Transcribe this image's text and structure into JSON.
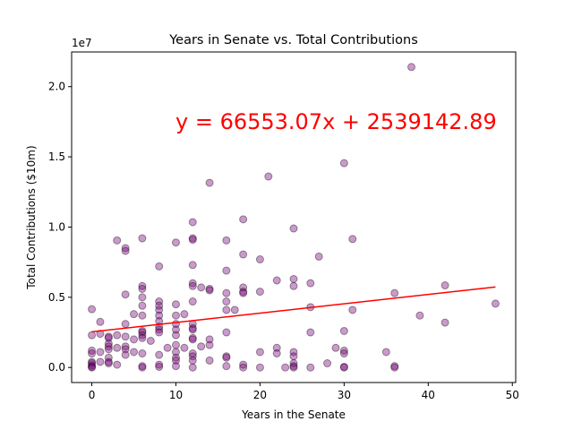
{
  "chart_data": {
    "type": "scatter",
    "title": "Years in Senate vs. Total Contributions",
    "xlabel": "Years in the Senate",
    "ylabel": "Total Contributions ($10m)",
    "offset_text": "1e7",
    "annotation": "y = 66553.07x + 2539142.89",
    "xlim": [
      -2.4,
      50.4
    ],
    "ylim": [
      -1070000,
      22470000
    ],
    "x_ticks": [
      0,
      10,
      20,
      30,
      40,
      50
    ],
    "x_tick_labels": [
      "0",
      "10",
      "20",
      "30",
      "40",
      "50"
    ],
    "y_ticks": [
      0,
      5000000,
      10000000,
      15000000,
      20000000
    ],
    "y_tick_labels": [
      "0.0",
      "0.5",
      "1.0",
      "1.5",
      "2.0"
    ],
    "grid": false,
    "point_color": "#800080",
    "point_edge_color": "#000000",
    "point_alpha": 0.4,
    "line_color": "#ff0000",
    "annotation_color": "#ff0000",
    "regression": {
      "slope": 66553.07,
      "intercept": 2539142.89,
      "x_range": [
        0,
        48
      ]
    },
    "points": [
      [
        0,
        4150000
      ],
      [
        0,
        2300000
      ],
      [
        0,
        1200000
      ],
      [
        0,
        1000000
      ],
      [
        0,
        400000
      ],
      [
        0,
        300000
      ],
      [
        0,
        150000
      ],
      [
        0,
        50000
      ],
      [
        0,
        0
      ],
      [
        1,
        3250000
      ],
      [
        1,
        2400000
      ],
      [
        1,
        1100000
      ],
      [
        1,
        400000
      ],
      [
        2,
        2200000
      ],
      [
        2,
        2100000
      ],
      [
        2,
        1700000
      ],
      [
        2,
        1500000
      ],
      [
        2,
        1300000
      ],
      [
        2,
        700000
      ],
      [
        2,
        400000
      ],
      [
        2,
        300000
      ],
      [
        3,
        9050000
      ],
      [
        3,
        2300000
      ],
      [
        3,
        1400000
      ],
      [
        3,
        200000
      ],
      [
        4,
        8500000
      ],
      [
        4,
        8300000
      ],
      [
        4,
        5200000
      ],
      [
        4,
        3100000
      ],
      [
        4,
        2200000
      ],
      [
        4,
        1500000
      ],
      [
        4,
        1300000
      ],
      [
        4,
        900000
      ],
      [
        5,
        3800000
      ],
      [
        5,
        2000000
      ],
      [
        5,
        1100000
      ],
      [
        6,
        9200000
      ],
      [
        6,
        5800000
      ],
      [
        6,
        5600000
      ],
      [
        6,
        5000000
      ],
      [
        6,
        4400000
      ],
      [
        6,
        3700000
      ],
      [
        6,
        2600000
      ],
      [
        6,
        2500000
      ],
      [
        6,
        2300000
      ],
      [
        6,
        2100000
      ],
      [
        6,
        1000000
      ],
      [
        6,
        100000
      ],
      [
        6,
        0
      ],
      [
        7,
        1900000
      ],
      [
        8,
        7200000
      ],
      [
        8,
        4700000
      ],
      [
        8,
        4400000
      ],
      [
        8,
        4100000
      ],
      [
        8,
        3700000
      ],
      [
        8,
        3300000
      ],
      [
        8,
        2900000
      ],
      [
        8,
        2700000
      ],
      [
        8,
        2500000
      ],
      [
        8,
        900000
      ],
      [
        8,
        200000
      ],
      [
        8,
        50000
      ],
      [
        9,
        1400000
      ],
      [
        10,
        8900000
      ],
      [
        10,
        4500000
      ],
      [
        10,
        3700000
      ],
      [
        10,
        3100000
      ],
      [
        10,
        2700000
      ],
      [
        10,
        2300000
      ],
      [
        10,
        1600000
      ],
      [
        10,
        1100000
      ],
      [
        10,
        700000
      ],
      [
        10,
        500000
      ],
      [
        10,
        100000
      ],
      [
        11,
        3800000
      ],
      [
        11,
        1400000
      ],
      [
        12,
        10350000
      ],
      [
        12,
        9200000
      ],
      [
        12,
        9100000
      ],
      [
        12,
        7300000
      ],
      [
        12,
        6000000
      ],
      [
        12,
        5800000
      ],
      [
        12,
        4700000
      ],
      [
        12,
        3100000
      ],
      [
        12,
        2800000
      ],
      [
        12,
        2700000
      ],
      [
        12,
        2100000
      ],
      [
        12,
        2000000
      ],
      [
        12,
        1000000
      ],
      [
        12,
        800000
      ],
      [
        12,
        500000
      ],
      [
        12,
        0
      ],
      [
        13,
        5700000
      ],
      [
        13,
        1500000
      ],
      [
        14,
        13150000
      ],
      [
        14,
        5600000
      ],
      [
        14,
        5500000
      ],
      [
        14,
        2000000
      ],
      [
        14,
        1600000
      ],
      [
        14,
        500000
      ],
      [
        16,
        9050000
      ],
      [
        16,
        6900000
      ],
      [
        16,
        5300000
      ],
      [
        16,
        4700000
      ],
      [
        16,
        4100000
      ],
      [
        16,
        2500000
      ],
      [
        16,
        800000
      ],
      [
        16,
        700000
      ],
      [
        16,
        100000
      ],
      [
        17,
        4100000
      ],
      [
        18,
        10550000
      ],
      [
        18,
        8050000
      ],
      [
        18,
        5700000
      ],
      [
        18,
        5400000
      ],
      [
        18,
        5300000
      ],
      [
        18,
        200000
      ],
      [
        18,
        0
      ],
      [
        20,
        7700000
      ],
      [
        20,
        5400000
      ],
      [
        20,
        1100000
      ],
      [
        20,
        0
      ],
      [
        21,
        13600000
      ],
      [
        22,
        6200000
      ],
      [
        22,
        1400000
      ],
      [
        22,
        1000000
      ],
      [
        23,
        0
      ],
      [
        24,
        9900000
      ],
      [
        24,
        6300000
      ],
      [
        24,
        5800000
      ],
      [
        24,
        1100000
      ],
      [
        24,
        800000
      ],
      [
        24,
        300000
      ],
      [
        24,
        100000
      ],
      [
        24,
        0
      ],
      [
        26,
        6000000
      ],
      [
        26,
        4300000
      ],
      [
        26,
        2500000
      ],
      [
        26,
        0
      ],
      [
        27,
        7900000
      ],
      [
        28,
        300000
      ],
      [
        29,
        1400000
      ],
      [
        30,
        14550000
      ],
      [
        30,
        2600000
      ],
      [
        30,
        1200000
      ],
      [
        30,
        1000000
      ],
      [
        30,
        50000
      ],
      [
        30,
        0
      ],
      [
        31,
        9150000
      ],
      [
        31,
        4100000
      ],
      [
        35,
        1100000
      ],
      [
        36,
        5300000
      ],
      [
        36,
        100000
      ],
      [
        36,
        0
      ],
      [
        38,
        21400000
      ],
      [
        39,
        3700000
      ],
      [
        42,
        5850000
      ],
      [
        42,
        3200000
      ],
      [
        48,
        4550000
      ]
    ]
  }
}
